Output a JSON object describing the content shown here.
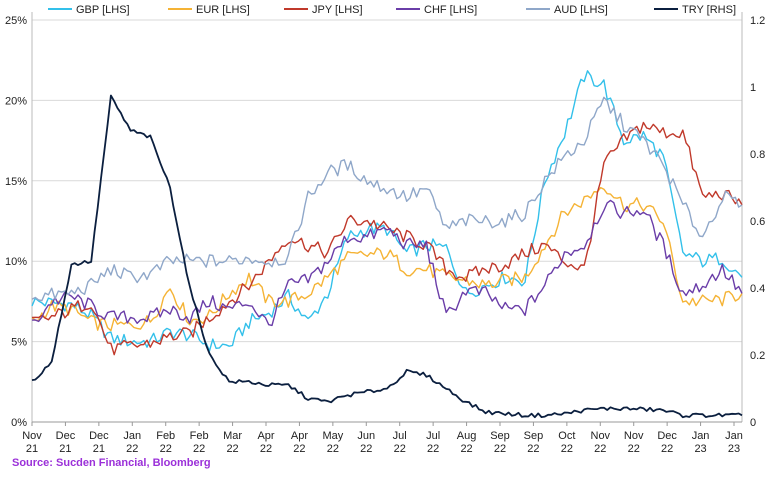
{
  "chart_data": {
    "type": "line",
    "source": "Source: Sucden Financial, Bloomberg",
    "y_left": {
      "ticks": [
        "0%",
        "5%",
        "10%",
        "15%",
        "20%",
        "25%"
      ],
      "min": 0,
      "max": 25
    },
    "y_right": {
      "ticks": [
        "0",
        "0.2",
        "0.4",
        "0.6",
        "0.8",
        "1",
        "1.2"
      ],
      "min": 0,
      "max": 1.2
    },
    "x_ticks": [
      {
        "m": "Nov",
        "y": "21"
      },
      {
        "m": "Dec",
        "y": "21"
      },
      {
        "m": "Dec",
        "y": "21"
      },
      {
        "m": "Jan",
        "y": "22"
      },
      {
        "m": "Feb",
        "y": "22"
      },
      {
        "m": "Feb",
        "y": "22"
      },
      {
        "m": "Mar",
        "y": "22"
      },
      {
        "m": "Apr",
        "y": "22"
      },
      {
        "m": "Apr",
        "y": "22"
      },
      {
        "m": "May",
        "y": "22"
      },
      {
        "m": "Jun",
        "y": "22"
      },
      {
        "m": "Jul",
        "y": "22"
      },
      {
        "m": "Jul",
        "y": "22"
      },
      {
        "m": "Aug",
        "y": "22"
      },
      {
        "m": "Sep",
        "y": "22"
      },
      {
        "m": "Sep",
        "y": "22"
      },
      {
        "m": "Oct",
        "y": "22"
      },
      {
        "m": "Nov",
        "y": "22"
      },
      {
        "m": "Nov",
        "y": "22"
      },
      {
        "m": "Dec",
        "y": "22"
      },
      {
        "m": "Jan",
        "y": "23"
      },
      {
        "m": "Jan",
        "y": "23"
      }
    ],
    "grid": "horizontal",
    "legend_position": "top",
    "series": [
      {
        "name": "GBP [LHS]",
        "axis": "left",
        "color": "#33c0ea",
        "values": [
          7.5,
          7.4,
          7.3,
          6.6,
          5.2,
          5.0,
          5.0,
          5.6,
          5.4,
          4.8,
          4.7,
          6.2,
          6.8,
          7.8,
          6.2,
          8.0,
          11.5,
          12.0,
          12.0,
          10.5,
          11.0,
          10.8,
          8.0,
          8.5,
          9.0,
          8.8,
          15.0,
          18.0,
          21.5,
          21.0,
          17.5,
          17.8,
          16.5,
          10.5,
          10.0,
          10.2,
          9.0
        ]
      },
      {
        "name": "EUR [LHS]",
        "axis": "left",
        "color": "#f5b335",
        "values": [
          6.2,
          7.2,
          7.0,
          6.2,
          6.0,
          6.0,
          6.3,
          8.4,
          6.3,
          6.6,
          8.0,
          9.0,
          7.5,
          7.5,
          8.0,
          9.0,
          10.2,
          10.4,
          10.5,
          9.5,
          9.5,
          9.0,
          8.8,
          8.5,
          8.8,
          9.0,
          11.0,
          13.0,
          13.8,
          14.8,
          13.5,
          13.5,
          12.5,
          7.5,
          7.5,
          7.6,
          8.0
        ]
      },
      {
        "name": "JPY [LHS]",
        "axis": "left",
        "color": "#c0392b",
        "values": [
          6.2,
          6.5,
          7.0,
          7.5,
          4.5,
          4.7,
          4.9,
          5.3,
          5.5,
          6.5,
          7.5,
          8.5,
          10.0,
          11.5,
          11.0,
          10.5,
          12.5,
          12.5,
          12.0,
          11.5,
          11.0,
          9.5,
          9.0,
          9.5,
          9.8,
          10.5,
          11.0,
          10.0,
          9.5,
          16.0,
          17.5,
          18.5,
          18.0,
          18.0,
          14.0,
          14.2,
          13.5
        ]
      },
      {
        "name": "CHF [LHS]",
        "axis": "left",
        "color": "#6a3da8",
        "values": [
          6.0,
          7.5,
          7.8,
          7.2,
          6.5,
          6.5,
          6.5,
          7.0,
          6.5,
          7.5,
          7.0,
          7.5,
          6.0,
          8.5,
          8.8,
          10.0,
          11.5,
          11.5,
          12.0,
          11.0,
          11.0,
          6.5,
          8.2,
          8.0,
          7.0,
          7.0,
          8.5,
          10.5,
          11.0,
          13.5,
          13.0,
          13.2,
          11.0,
          8.0,
          8.5,
          9.5,
          8.0
        ]
      },
      {
        "name": "AUD [LHS]",
        "axis": "left",
        "color": "#8fa7c9",
        "values": [
          7.8,
          7.9,
          8.0,
          8.5,
          9.5,
          9.0,
          9.2,
          10.0,
          10.0,
          10.0,
          10.0,
          10.2,
          10.0,
          10.2,
          14.0,
          15.5,
          16.0,
          15.0,
          14.5,
          14.0,
          14.5,
          12.0,
          12.5,
          12.5,
          12.5,
          13.0,
          15.0,
          16.5,
          17.5,
          20.0,
          18.5,
          17.5,
          16.0,
          13.5,
          11.5,
          14.0,
          13.5
        ]
      },
      {
        "name": "TRY [RHS]",
        "axis": "right",
        "color": "#0b1f3f",
        "values": [
          0.12,
          0.18,
          0.47,
          0.48,
          0.97,
          0.87,
          0.85,
          0.7,
          0.4,
          0.2,
          0.12,
          0.12,
          0.11,
          0.11,
          0.07,
          0.06,
          0.08,
          0.09,
          0.1,
          0.15,
          0.14,
          0.1,
          0.06,
          0.03,
          0.025,
          0.02,
          0.02,
          0.025,
          0.035,
          0.04,
          0.04,
          0.038,
          0.035,
          0.02,
          0.02,
          0.02,
          0.02
        ]
      }
    ]
  }
}
